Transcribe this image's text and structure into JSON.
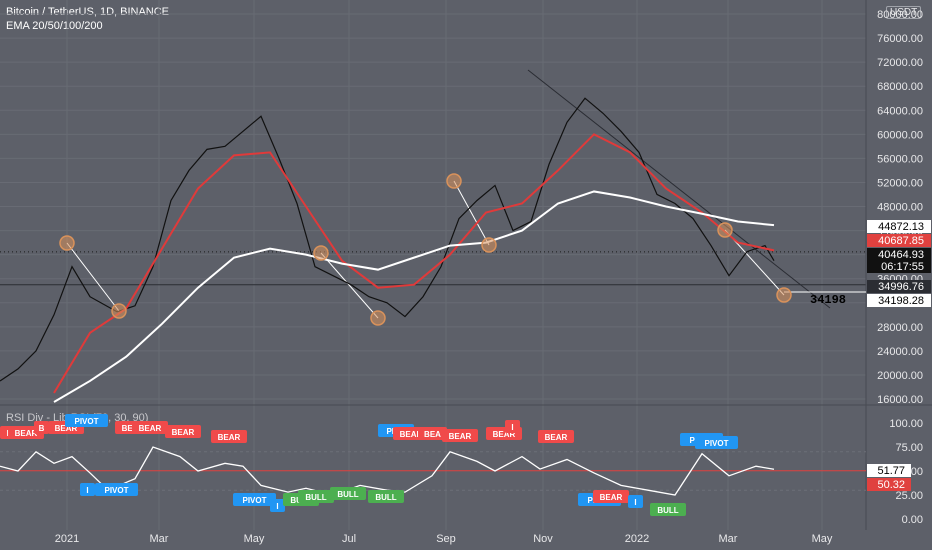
{
  "header": {
    "title": "Bitcoin / TetherUS, 1D, BINANCE",
    "indicator": "EMA 20/50/100/200",
    "currency_button": "USDT",
    "rsi_title": "RSI Div - Lib RSI (70, 30, 90)"
  },
  "colors": {
    "background": "#5d6069",
    "price": "#111111",
    "ema_short": "#e03a3a",
    "ema_long": "#ffffff",
    "pivot_circle": "#d9925b",
    "bear": "#f04a4a",
    "bull": "#4caf50",
    "pivot": "#2196f3",
    "rsi_line": "#ffffff"
  },
  "chart_data": [
    {
      "type": "line",
      "panel": "price",
      "y_axis_ticks": [
        16000,
        20000,
        24000,
        28000,
        32000,
        36000,
        40000,
        44000,
        48000,
        52000,
        56000,
        60000,
        64000,
        68000,
        72000,
        76000,
        80000
      ],
      "x_axis_ticks": [
        "2021",
        "Mar",
        "May",
        "Jul",
        "Sep",
        "Nov",
        "2022",
        "Mar",
        "May"
      ],
      "ylim": [
        15000,
        82000
      ],
      "price_labels": [
        {
          "text": "44872.13",
          "value": 44872.13,
          "color": "#ffffff",
          "text_color": "#000000"
        },
        {
          "text": "40687.85",
          "value": 40687.85,
          "color": "#e0413f",
          "text_color": "#ffffff"
        },
        {
          "text": "40464.93",
          "value": 40464.93,
          "color": "#111111",
          "text_color": "#ffffff"
        },
        {
          "text": "06:17:55",
          "value": 38250,
          "color": "#111111",
          "text_color": "#ffffff"
        },
        {
          "text": "34996.76",
          "value": 34996.76,
          "color": "#2b2d33",
          "text_color": "#ffffff"
        },
        {
          "text": "34198.28",
          "value": 34198.28,
          "color": "#ffffff",
          "text_color": "#000000"
        }
      ],
      "annotation": {
        "text": "34198",
        "value": 34198
      },
      "series": [
        {
          "role": "price",
          "color": "#111111",
          "x": [
            0,
            0.02,
            0.04,
            0.06,
            0.08,
            0.1,
            0.13,
            0.15,
            0.17,
            0.19,
            0.21,
            0.23,
            0.25,
            0.27,
            0.29,
            0.31,
            0.33,
            0.35,
            0.37,
            0.39,
            0.41,
            0.43,
            0.45,
            0.47,
            0.49,
            0.51,
            0.53,
            0.55,
            0.57,
            0.59,
            0.61,
            0.63,
            0.65,
            0.67,
            0.69,
            0.71,
            0.73,
            0.75,
            0.77,
            0.79,
            0.81,
            0.83,
            0.85,
            0.86
          ],
          "y": [
            19000,
            21000,
            24000,
            30000,
            38000,
            33000,
            30500,
            31500,
            38000,
            49000,
            54000,
            57500,
            58000,
            60500,
            63000,
            56000,
            48500,
            38000,
            36500,
            35000,
            33000,
            32000,
            29700,
            33000,
            38000,
            46000,
            49000,
            51500,
            44000,
            45500,
            55000,
            62000,
            66000,
            63500,
            60500,
            57000,
            50000,
            48500,
            46000,
            41500,
            36500,
            40500,
            41500,
            39000
          ]
        },
        {
          "role": "ema_short",
          "color": "#e03a3a",
          "x": [
            0.06,
            0.1,
            0.14,
            0.18,
            0.22,
            0.26,
            0.3,
            0.34,
            0.38,
            0.42,
            0.46,
            0.5,
            0.54,
            0.58,
            0.62,
            0.66,
            0.7,
            0.74,
            0.78,
            0.82,
            0.86
          ],
          "y": [
            17000,
            27000,
            31000,
            41000,
            51000,
            56500,
            57000,
            48000,
            39000,
            34500,
            35000,
            40000,
            47000,
            48500,
            54000,
            60000,
            57000,
            51000,
            47000,
            42000,
            40700
          ]
        },
        {
          "role": "ema_long",
          "color": "#ffffff",
          "x": [
            0.06,
            0.1,
            0.14,
            0.18,
            0.22,
            0.26,
            0.3,
            0.34,
            0.38,
            0.42,
            0.46,
            0.5,
            0.54,
            0.58,
            0.62,
            0.66,
            0.7,
            0.74,
            0.78,
            0.82,
            0.86
          ],
          "y": [
            15500,
            19000,
            23000,
            28500,
            34500,
            39500,
            41000,
            40000,
            38500,
            37500,
            39500,
            41500,
            42000,
            44000,
            48500,
            50500,
            49500,
            48000,
            46800,
            45500,
            44900
          ]
        }
      ]
    },
    {
      "type": "line",
      "panel": "rsi",
      "ylim": [
        0,
        100
      ],
      "y_axis_ticks": [
        0,
        25,
        50,
        75,
        100
      ],
      "y_axis_tick_labels": [
        "0.00",
        "25.00",
        "50.00",
        "75.00",
        "100.00"
      ],
      "levels": [
        {
          "value": 70
        },
        {
          "value": 30
        }
      ],
      "value_labels": [
        {
          "text": "51.77",
          "value": 51.77,
          "color": "#ffffff",
          "text_color": "#000000"
        },
        {
          "text": "50.32",
          "value": 50.32,
          "color": "#e0413f",
          "text_color": "#ffffff"
        }
      ],
      "series": [
        {
          "role": "rsi",
          "color": "#ffffff",
          "x": [
            0,
            0.02,
            0.04,
            0.06,
            0.08,
            0.1,
            0.12,
            0.15,
            0.17,
            0.2,
            0.22,
            0.25,
            0.27,
            0.29,
            0.32,
            0.34,
            0.37,
            0.4,
            0.43,
            0.45,
            0.48,
            0.5,
            0.53,
            0.55,
            0.58,
            0.6,
            0.63,
            0.66,
            0.69,
            0.72,
            0.75,
            0.78,
            0.81,
            0.84,
            0.86
          ],
          "y": [
            55,
            50,
            70,
            58,
            65,
            48,
            30,
            42,
            75,
            65,
            50,
            58,
            55,
            35,
            28,
            32,
            25,
            35,
            30,
            28,
            45,
            70,
            60,
            50,
            65,
            52,
            62,
            48,
            35,
            30,
            25,
            68,
            45,
            55,
            51.8
          ]
        }
      ],
      "markers": [
        {
          "text": "BEAR",
          "kind": "bear"
        },
        {
          "text": "BEAR",
          "kind": "bear"
        },
        {
          "text": "B",
          "kind": "bear"
        },
        {
          "text": "BEAR",
          "kind": "bear"
        },
        {
          "text": "PIVOT",
          "kind": "pivot"
        },
        {
          "text": "I",
          "kind": "pivot"
        },
        {
          "text": "PIVOT",
          "kind": "pivot"
        },
        {
          "text": "BEAR",
          "kind": "bear"
        },
        {
          "text": "BEAR",
          "kind": "bear"
        },
        {
          "text": "BEAR",
          "kind": "bear"
        },
        {
          "text": "BEAR",
          "kind": "bear"
        },
        {
          "text": "PIVOT",
          "kind": "pivot"
        },
        {
          "text": "I",
          "kind": "pivot"
        },
        {
          "text": "BULL",
          "kind": "bull"
        },
        {
          "text": "BULL",
          "kind": "bull"
        },
        {
          "text": "BULL",
          "kind": "bull"
        },
        {
          "text": "BULL",
          "kind": "bull"
        },
        {
          "text": "PIVO",
          "kind": "pivot"
        },
        {
          "text": "BEAR",
          "kind": "bear"
        },
        {
          "text": "BEA",
          "kind": "bear"
        },
        {
          "text": "BEAR",
          "kind": "bear"
        },
        {
          "text": "BEAR",
          "kind": "bear"
        },
        {
          "text": "I",
          "kind": "bear"
        },
        {
          "text": "BEAR",
          "kind": "bear"
        },
        {
          "text": "PIVOT",
          "kind": "pivot"
        },
        {
          "text": "BEAR",
          "kind": "bear"
        },
        {
          "text": "I",
          "kind": "pivot"
        },
        {
          "text": "BULL",
          "kind": "bull"
        },
        {
          "text": "PIVOT",
          "kind": "pivot"
        },
        {
          "text": "PIVOT",
          "kind": "pivot"
        },
        {
          "text": "P",
          "kind": "pivot"
        },
        {
          "text": "BEAR",
          "kind": "bear"
        }
      ]
    }
  ]
}
